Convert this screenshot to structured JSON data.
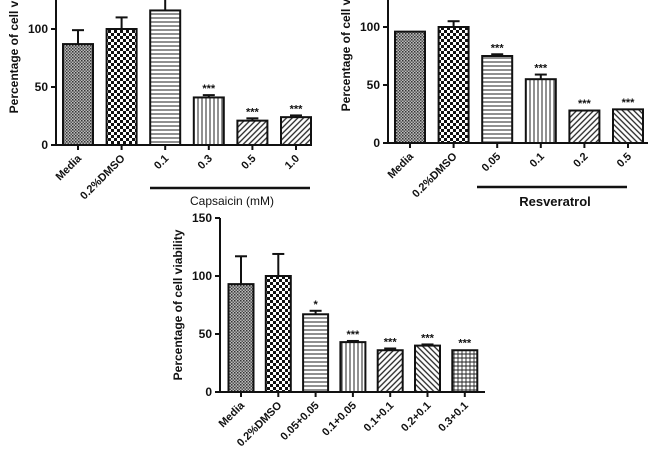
{
  "chart_data": [
    {
      "type": "bar",
      "ylabel": "Percentage of cell viability",
      "ylim": [
        0,
        150
      ],
      "yticks": [
        0,
        50,
        100
      ],
      "group_label": "Capsaicin (mM)",
      "group_bold": false,
      "categories": [
        "Media",
        "0.2%DMSO",
        "0.1",
        "0.3",
        "0.5",
        "1.0"
      ],
      "values": [
        87,
        100,
        116,
        41,
        21,
        24
      ],
      "errors": [
        12,
        10,
        10,
        2,
        2,
        1.5
      ],
      "significance": [
        "",
        "",
        "",
        "***",
        "***",
        "***"
      ],
      "patterns": [
        "dense-crosshatch",
        "checker",
        "horizontal",
        "vertical",
        "diagonal",
        "diagonal"
      ],
      "grouped_from": 2
    },
    {
      "type": "bar",
      "ylabel": "Percentage of cell viability",
      "ylim": [
        0,
        150
      ],
      "yticks": [
        0,
        50,
        100
      ],
      "group_label": "Resveratrol",
      "group_bold": true,
      "categories": [
        "Media",
        "0.2%DMSO",
        "0.05",
        "0.1",
        "0.2",
        "0.5"
      ],
      "values": [
        96,
        100,
        75,
        55,
        28,
        29
      ],
      "errors": [
        0.5,
        5,
        1.5,
        4,
        0.5,
        0.5
      ],
      "significance": [
        "",
        "",
        "***",
        "***",
        "***",
        "***"
      ],
      "patterns": [
        "dense-crosshatch",
        "checker",
        "horizontal",
        "vertical",
        "diagonal",
        "reverse-diagonal"
      ],
      "grouped_from": 2
    },
    {
      "type": "bar",
      "ylabel": "Percentage of cell viability",
      "ylim": [
        0,
        150
      ],
      "yticks": [
        0,
        50,
        100,
        150
      ],
      "categories": [
        "Media",
        "0.2%DMSO",
        "0.05+0.05",
        "0.1+0.05",
        "0.1+0.1",
        "0.2+0.1",
        "0.3+0.1"
      ],
      "values": [
        93,
        100,
        67,
        43,
        36,
        40,
        36
      ],
      "errors": [
        24,
        19,
        3,
        1,
        1.5,
        1,
        0.5
      ],
      "significance": [
        "",
        "",
        "*",
        "***",
        "***",
        "***",
        "***"
      ],
      "patterns": [
        "dense-crosshatch",
        "checker",
        "horizontal",
        "vertical",
        "diagonal",
        "reverse-diagonal",
        "grid"
      ]
    }
  ]
}
